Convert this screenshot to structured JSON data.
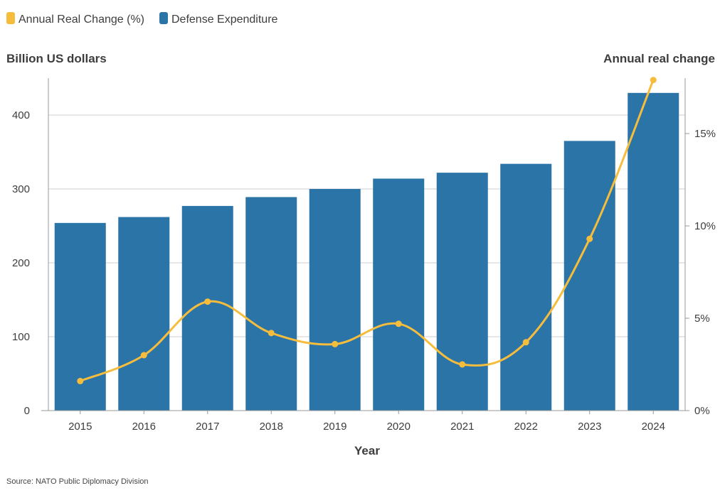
{
  "chart_data": {
    "type": "bar",
    "categories": [
      "2015",
      "2016",
      "2017",
      "2018",
      "2019",
      "2020",
      "2021",
      "2022",
      "2023",
      "2024"
    ],
    "series": [
      {
        "name": "Defense Expenditure",
        "type": "bar",
        "axis": "left",
        "color": "#2b74a8",
        "values": [
          254,
          262,
          277,
          289,
          300,
          314,
          322,
          334,
          365,
          430
        ]
      },
      {
        "name": "Annual Real Change (%)",
        "type": "line",
        "axis": "right",
        "color": "#f6bd3c",
        "values": [
          1.6,
          3.0,
          5.9,
          4.2,
          3.6,
          4.7,
          2.5,
          3.7,
          9.3,
          17.9
        ]
      }
    ],
    "title": "",
    "xlabel": "Year",
    "ylabel": "Billion US dollars",
    "ylabel_right": "Annual real change",
    "ylim": [
      0,
      450
    ],
    "ylim_right": [
      0,
      17.9
    ],
    "yticks": [
      "0",
      "100",
      "200",
      "300",
      "400"
    ],
    "yticks_right": [
      "0%",
      "5%",
      "10%",
      "15%"
    ],
    "grid": true,
    "legend_position": "top-left",
    "source": "Source: NATO Public Diplomacy Division"
  }
}
